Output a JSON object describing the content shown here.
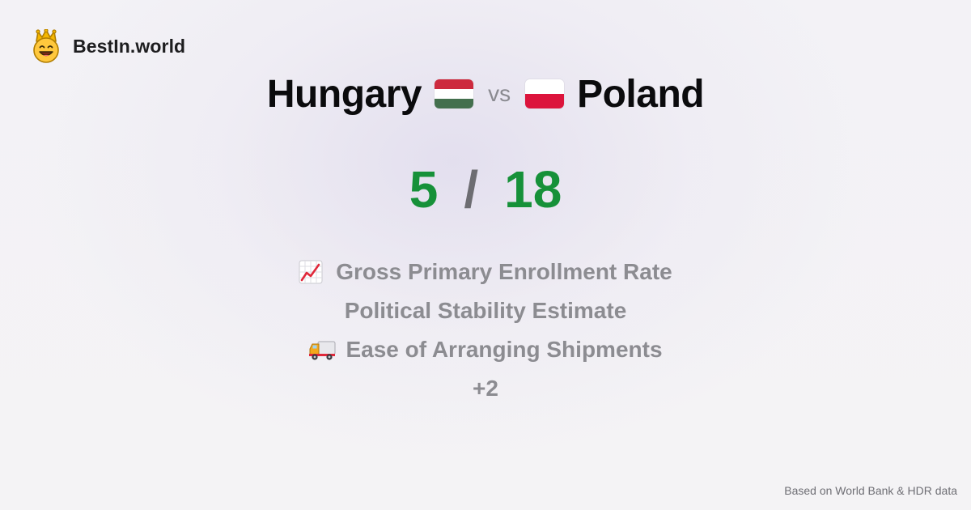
{
  "brand": {
    "name": "BestIn.world",
    "logo_icon": "crowned-smiley-icon"
  },
  "comparison": {
    "left_country": "Hungary",
    "left_flag_icon": "hungary-flag-icon",
    "vs_label": "vs",
    "right_country": "Poland",
    "right_flag_icon": "poland-flag-icon"
  },
  "score": {
    "left": "5",
    "separator": "/",
    "right": "18",
    "color": "#169139"
  },
  "categories": [
    {
      "label": "Gross Primary Enrollment Rate",
      "icon": "chart-increasing-icon"
    },
    {
      "label": "Political Stability Estimate",
      "icon": ""
    },
    {
      "label": "Ease of Arranging Shipments",
      "icon": "delivery-truck-icon"
    }
  ],
  "more_label": "+2",
  "footer": {
    "source_text": "Based on World Bank & HDR data"
  },
  "colors": {
    "hungary_red": "#cd2a3e",
    "hungary_white": "#ffffff",
    "hungary_green": "#436f4d",
    "poland_white": "#ffffff",
    "poland_red": "#dc143c",
    "muted_text": "#8c8c91"
  }
}
